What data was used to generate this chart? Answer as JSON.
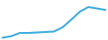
{
  "x": [
    0,
    1,
    2,
    3,
    4,
    5,
    6,
    7,
    8,
    9,
    10,
    11,
    12
  ],
  "y": [
    1.0,
    1.3,
    2.0,
    2.0,
    2.1,
    2.2,
    2.3,
    3.2,
    4.8,
    6.5,
    7.5,
    7.2,
    6.9
  ],
  "line_color": "#3aabdc",
  "linewidth": 1.5,
  "background_color": "#ffffff",
  "ylim": [
    0.5,
    9.0
  ],
  "xlim": [
    -0.3,
    12.3
  ]
}
